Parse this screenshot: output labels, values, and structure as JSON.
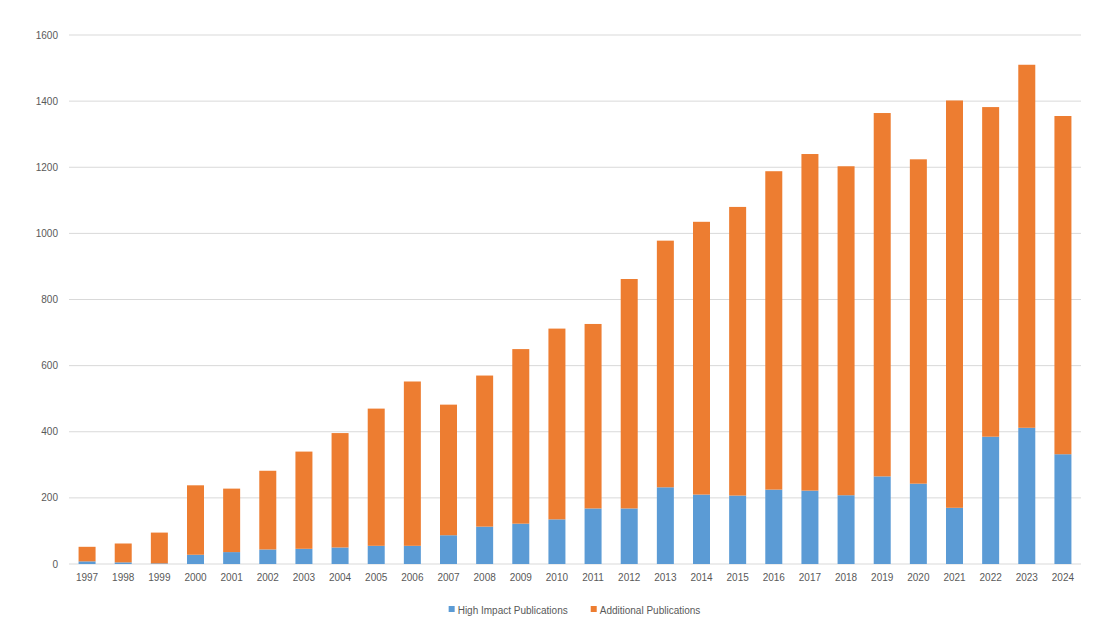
{
  "chart_data": {
    "type": "bar",
    "stacked": true,
    "grid": true,
    "legend": "bottom",
    "categories": [
      "1997",
      "1998",
      "1999",
      "2000",
      "2001",
      "2002",
      "2003",
      "2004",
      "2005",
      "2006",
      "2007",
      "2008",
      "2009",
      "2010",
      "2011",
      "2012",
      "2013",
      "2014",
      "2015",
      "2016",
      "2017",
      "2018",
      "2019",
      "2020",
      "2021",
      "2022",
      "2023",
      "2024"
    ],
    "series": [
      {
        "name": "High Impact Publications",
        "color": "#5b9bd5",
        "values": [
          8,
          5,
          2,
          28,
          36,
          44,
          46,
          50,
          55,
          55,
          87,
          113,
          122,
          135,
          168,
          168,
          232,
          210,
          207,
          225,
          222,
          208,
          265,
          243,
          170,
          385,
          412,
          332
        ]
      },
      {
        "name": "Additional Publications",
        "color": "#ed7d31",
        "values": [
          44,
          57,
          93,
          210,
          192,
          238,
          294,
          346,
          415,
          497,
          395,
          457,
          528,
          577,
          558,
          694,
          746,
          825,
          873,
          963,
          1018,
          995,
          1099,
          981,
          1232,
          997,
          1098,
          1023
        ]
      }
    ],
    "ylim": [
      0,
      1600
    ],
    "yticks": [
      0,
      200,
      400,
      600,
      800,
      1000,
      1200,
      1400,
      1600
    ]
  }
}
